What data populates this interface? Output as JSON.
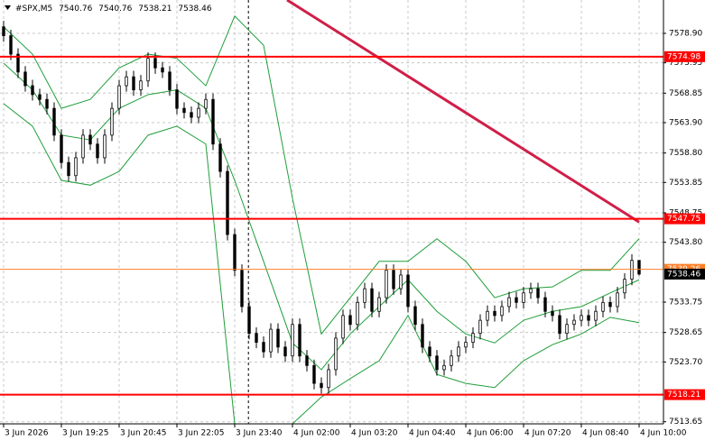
{
  "chart_data": {
    "type": "candlestick",
    "title": "#SPX,M5",
    "background": "#ffffff",
    "xlim": [
      -0.5,
      91.375
    ],
    "ylim": [
      7513.3,
      7584.5
    ],
    "grid": true,
    "xticks": [
      {
        "value": 0,
        "label": "3 Jun 2026"
      },
      {
        "value": 8,
        "label": "3 Jun 19:25"
      },
      {
        "value": 16,
        "label": "3 Jun 20:45"
      },
      {
        "value": 24,
        "label": "3 Jun 22:05"
      },
      {
        "value": 32,
        "label": "3 Jun 23:40"
      },
      {
        "value": 40,
        "label": "4 Jun 02:00"
      },
      {
        "value": 48,
        "label": "4 Jun 03:20"
      },
      {
        "value": 56,
        "label": "4 Jun 04:40"
      },
      {
        "value": 64,
        "label": "4 Jun 06:00"
      },
      {
        "value": 72,
        "label": "4 Jun 07:20"
      },
      {
        "value": 80,
        "label": "4 Jun 08:40"
      },
      {
        "value": 88,
        "label": "4 Jun 10:00"
      }
    ],
    "yticks": [
      {
        "value": 7578.9,
        "label": "7578.90"
      },
      7573.95,
      7568.85,
      {
        "value": 7563.9,
        "label": "7563.90"
      },
      {
        "value": 7558.8,
        "label": "7558.80"
      },
      7553.85,
      7548.75,
      {
        "value": 7543.8,
        "label": "7543.80"
      },
      7533.75,
      7528.65,
      {
        "value": 7523.7,
        "label": "7523.70"
      },
      7513.65
    ],
    "candle_color": "#000000",
    "open": [
      7580.0,
      7578.5,
      7575.4,
      7572.4,
      7570.1,
      7568.6,
      7567.8,
      7566.3,
      7561.8,
      7557.2,
      7555.0,
      7558.0,
      7561.8,
      7560.3,
      7558.0,
      7561.8,
      7566.3,
      7570.1,
      7571.6,
      7569.4,
      7570.9,
      7574.7,
      7573.1,
      7572.4,
      7569.4,
      7566.3,
      7565.6,
      7564.8,
      7566.3,
      7567.8,
      7560.3,
      7555.7,
      7545.1,
      7539.1,
      7533.0,
      7528.5,
      7527.0,
      7525.4,
      7529.2,
      7526.2,
      7524.7,
      7530.0,
      7524.7,
      7523.1,
      7520.1,
      7519.4,
      7522.4,
      7527.7,
      7531.5,
      7530.0,
      7533.7,
      7536.0,
      7532.2,
      7534.5,
      7539.1,
      7536.0,
      7538.3,
      7533.0,
      7530.0,
      7526.2,
      7524.7,
      7522.4,
      7523.1,
      7524.7,
      7526.2,
      7527.0,
      7528.5,
      7530.7,
      7532.2,
      7531.5,
      7533.0,
      7534.5,
      7533.7,
      7535.3,
      7536.0,
      7534.5,
      7532.2,
      7531.5,
      7528.5,
      7530.0,
      7530.7,
      7531.5,
      7530.7,
      7532.2,
      7533.7,
      7533.0,
      7535.3,
      7537.6,
      7540.76
    ],
    "high": [
      7581.0,
      7579.5,
      7576.4,
      7573.4,
      7571.1,
      7569.6,
      7568.8,
      7567.3,
      7562.8,
      7558.2,
      7559.0,
      7562.8,
      7562.8,
      7561.3,
      7562.8,
      7567.3,
      7571.1,
      7572.6,
      7572.6,
      7571.9,
      7575.7,
      7575.7,
      7574.1,
      7573.4,
      7570.4,
      7567.3,
      7566.6,
      7567.3,
      7568.8,
      7568.8,
      7561.3,
      7556.7,
      7546.1,
      7540.1,
      7534.0,
      7529.5,
      7528.0,
      7530.2,
      7530.2,
      7527.2,
      7531.0,
      7531.0,
      7525.7,
      7524.1,
      7521.1,
      7523.4,
      7528.7,
      7532.5,
      7532.5,
      7534.7,
      7537.0,
      7537.0,
      7535.5,
      7540.1,
      7540.1,
      7539.3,
      7539.3,
      7534.0,
      7531.0,
      7527.2,
      7525.7,
      7524.1,
      7525.7,
      7527.2,
      7528.0,
      7529.5,
      7531.7,
      7533.2,
      7533.2,
      7534.0,
      7535.5,
      7535.5,
      7536.3,
      7537.0,
      7537.0,
      7535.5,
      7533.2,
      7532.5,
      7531.0,
      7531.7,
      7532.5,
      7532.5,
      7533.2,
      7534.7,
      7534.7,
      7536.3,
      7538.6,
      7541.8,
      7540.76
    ],
    "low": [
      7577.5,
      7574.4,
      7571.4,
      7569.1,
      7567.6,
      7566.8,
      7565.3,
      7560.8,
      7556.2,
      7554.0,
      7554.0,
      7557.0,
      7559.3,
      7557.0,
      7557.0,
      7560.8,
      7565.3,
      7569.1,
      7568.4,
      7568.4,
      7569.9,
      7572.1,
      7571.4,
      7568.4,
      7565.3,
      7564.6,
      7563.8,
      7563.8,
      7565.3,
      7559.3,
      7554.7,
      7544.1,
      7538.1,
      7532.0,
      7527.5,
      7526.0,
      7524.4,
      7524.4,
      7525.2,
      7523.7,
      7523.7,
      7523.7,
      7522.1,
      7519.1,
      7518.4,
      7518.4,
      7521.4,
      7526.7,
      7529.0,
      7529.0,
      7532.7,
      7531.2,
      7531.2,
      7533.5,
      7535.0,
      7535.0,
      7532.0,
      7529.0,
      7525.2,
      7523.7,
      7521.4,
      7521.4,
      7522.1,
      7523.7,
      7525.2,
      7526.0,
      7527.5,
      7529.7,
      7530.5,
      7530.5,
      7532.0,
      7532.7,
      7532.7,
      7534.3,
      7533.5,
      7531.2,
      7530.5,
      7527.5,
      7527.5,
      7529.0,
      7529.7,
      7529.7,
      7529.7,
      7531.2,
      7532.0,
      7532.0,
      7534.3,
      7536.6,
      7538.21
    ],
    "close": [
      7578.5,
      7575.4,
      7572.4,
      7570.1,
      7568.6,
      7567.8,
      7566.3,
      7561.8,
      7557.2,
      7555.0,
      7558.0,
      7561.8,
      7560.3,
      7558.0,
      7561.8,
      7566.3,
      7570.1,
      7571.6,
      7569.4,
      7570.9,
      7574.7,
      7573.1,
      7572.4,
      7569.4,
      7566.3,
      7565.6,
      7564.8,
      7566.3,
      7567.8,
      7560.3,
      7555.7,
      7545.1,
      7539.1,
      7533.0,
      7528.5,
      7527.0,
      7525.4,
      7529.2,
      7526.2,
      7524.7,
      7530.0,
      7524.7,
      7523.1,
      7520.1,
      7519.4,
      7522.4,
      7527.7,
      7531.5,
      7530.0,
      7533.7,
      7536.0,
      7532.2,
      7534.5,
      7539.1,
      7536.0,
      7538.3,
      7533.0,
      7530.0,
      7526.2,
      7524.7,
      7522.4,
      7523.1,
      7524.7,
      7526.2,
      7527.0,
      7528.5,
      7530.7,
      7532.2,
      7531.5,
      7533.0,
      7534.5,
      7533.7,
      7535.3,
      7536.0,
      7534.5,
      7532.2,
      7531.5,
      7528.5,
      7530.0,
      7530.7,
      7531.5,
      7530.7,
      7532.2,
      7533.7,
      7533.0,
      7535.3,
      7537.6,
      7540.76,
      7538.46
    ],
    "bands": {
      "color": "#1f9e3a",
      "x": [
        0,
        4,
        8,
        12,
        16,
        20,
        24,
        28,
        32,
        36,
        40,
        44,
        48,
        52,
        56,
        60,
        64,
        68,
        72,
        76,
        80,
        84,
        88
      ],
      "upper": [
        7580.0,
        7575.4,
        7566.3,
        7567.8,
        7573.1,
        7575.4,
        7574.7,
        7570.1,
        7581.8,
        7576.9,
        7551.2,
        7528.4,
        7534.5,
        7540.6,
        7540.6,
        7544.4,
        7540.6,
        7534.5,
        7536.0,
        7536.3,
        7539.1,
        7539.1,
        7544.4
      ],
      "middle": [
        7573.9,
        7569.4,
        7561.8,
        7561.0,
        7566.3,
        7568.6,
        7569.4,
        7566.3,
        7554.2,
        7540.6,
        7526.9,
        7522.4,
        7528.4,
        7533.0,
        7537.5,
        7532.2,
        7528.4,
        7526.9,
        7530.7,
        7532.2,
        7533.0,
        7535.3,
        7537.5
      ],
      "lower": [
        7567.1,
        7563.3,
        7554.2,
        7553.4,
        7555.7,
        7561.8,
        7563.3,
        7560.3,
        7513.3,
        7513.3,
        7513.3,
        7517.8,
        7520.9,
        7523.9,
        7531.5,
        7521.6,
        7520.1,
        7519.4,
        7523.9,
        7526.6,
        7528.4,
        7531.2,
        7530.3
      ]
    },
    "trendline": {
      "color": "#d01e48",
      "x": [
        39.25,
        88
      ],
      "values": [
        7584.5,
        7547.2
      ]
    },
    "vline_x": 33.9,
    "levels": [
      {
        "value": 7574.98,
        "color": "#ff0000"
      },
      {
        "value": 7547.75,
        "color": "#ff0000"
      },
      {
        "value": 7518.21,
        "color": "#ff0000"
      },
      {
        "value": 7539.26,
        "color": "#ff7f27"
      }
    ],
    "last_price": {
      "value": 7538.46,
      "color": "#000000"
    }
  }
}
